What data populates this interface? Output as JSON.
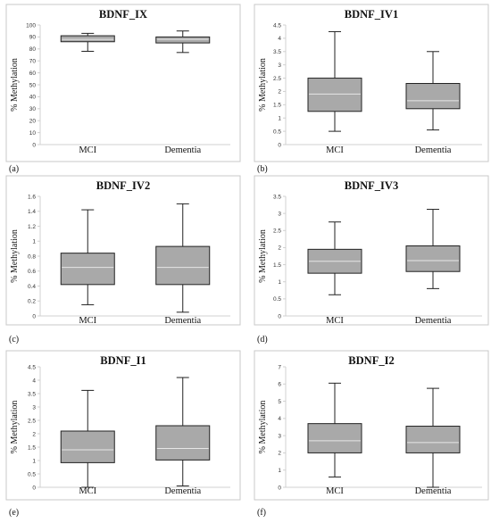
{
  "chart_data": [
    {
      "type": "boxplot",
      "panel_label": "(a)",
      "title": "BDNF_IX",
      "ylabel": "% Methylation",
      "ylim": [
        0,
        100
      ],
      "yticks": [
        "0",
        "10",
        "20",
        "30",
        "40",
        "50",
        "60",
        "70",
        "80",
        "90",
        "100"
      ],
      "categories": [
        "MCI",
        "Dementia"
      ],
      "boxes": [
        {
          "category": "MCI",
          "min": 78,
          "q1": 86,
          "median": 88,
          "q3": 91,
          "max": 93
        },
        {
          "category": "Dementia",
          "min": 77,
          "q1": 85,
          "median": 88,
          "q3": 90,
          "max": 95
        }
      ]
    },
    {
      "type": "boxplot",
      "panel_label": "(b)",
      "title": "BDNF_IV1",
      "ylabel": "% Methylation",
      "ylim": [
        0,
        4.5
      ],
      "yticks": [
        "0",
        "0.5",
        "1",
        "1.5",
        "2",
        "2.5",
        "3",
        "3.5",
        "4",
        "4.5"
      ],
      "categories": [
        "MCI",
        "Dementia"
      ],
      "boxes": [
        {
          "category": "MCI",
          "min": 0.5,
          "q1": 1.25,
          "median": 1.9,
          "q3": 2.5,
          "max": 4.25
        },
        {
          "category": "Dementia",
          "min": 0.55,
          "q1": 1.35,
          "median": 1.65,
          "q3": 2.3,
          "max": 3.5
        }
      ]
    },
    {
      "type": "boxplot",
      "panel_label": "(c)",
      "title": "BDNF_IV2",
      "ylabel": "% Methylation",
      "ylim": [
        0,
        1.6
      ],
      "yticks": [
        "0",
        "0.2",
        "0.4",
        "0.6",
        "0.8",
        "1",
        "1.2",
        "1.4",
        "1.6"
      ],
      "categories": [
        "MCI",
        "Dementia"
      ],
      "boxes": [
        {
          "category": "MCI",
          "min": 0.15,
          "q1": 0.42,
          "median": 0.65,
          "q3": 0.84,
          "max": 1.42
        },
        {
          "category": "Dementia",
          "min": 0.05,
          "q1": 0.42,
          "median": 0.65,
          "q3": 0.93,
          "max": 1.5
        }
      ]
    },
    {
      "type": "boxplot",
      "panel_label": "(d)",
      "title": "BDNF_IV3",
      "ylabel": "% Methylation",
      "ylim": [
        0,
        3.5
      ],
      "yticks": [
        "0",
        "0.5",
        "1",
        "1.5",
        "2",
        "2.5",
        "3",
        "3.5"
      ],
      "categories": [
        "MCI",
        "Dementia"
      ],
      "boxes": [
        {
          "category": "MCI",
          "min": 0.62,
          "q1": 1.25,
          "median": 1.6,
          "q3": 1.95,
          "max": 2.75
        },
        {
          "category": "Dementia",
          "min": 0.8,
          "q1": 1.3,
          "median": 1.62,
          "q3": 2.05,
          "max": 3.12
        }
      ]
    },
    {
      "type": "boxplot",
      "panel_label": "(e)",
      "title": "BDNF_I1",
      "ylabel": "% Methylation",
      "ylim": [
        0,
        4.5
      ],
      "yticks": [
        "0",
        "0.5",
        "1",
        "1.5",
        "2",
        "2.5",
        "3",
        "3.5",
        "4",
        "4.5"
      ],
      "categories": [
        "MCI",
        "Dementia"
      ],
      "boxes": [
        {
          "category": "MCI",
          "min": 0.0,
          "q1": 0.92,
          "median": 1.4,
          "q3": 2.1,
          "max": 3.62
        },
        {
          "category": "Dementia",
          "min": 0.05,
          "q1": 1.02,
          "median": 1.45,
          "q3": 2.3,
          "max": 4.1
        }
      ]
    },
    {
      "type": "boxplot",
      "panel_label": "(f)",
      "title": "BDNF_I2",
      "ylabel": "% Methylation",
      "ylim": [
        0,
        7
      ],
      "yticks": [
        "0",
        "1",
        "2",
        "3",
        "4",
        "5",
        "6",
        "7"
      ],
      "categories": [
        "MCI",
        "Dementia"
      ],
      "boxes": [
        {
          "category": "MCI",
          "min": 0.6,
          "q1": 2.0,
          "median": 2.7,
          "q3": 3.7,
          "max": 6.05
        },
        {
          "category": "Dementia",
          "min": 0.0,
          "q1": 2.0,
          "median": 2.6,
          "q3": 3.55,
          "max": 5.75
        }
      ]
    }
  ],
  "colors": {
    "box_fill": "#a9a9a9",
    "median_line": "#e6e6e6",
    "whisker": "#222222",
    "frame": "#c8c8c8"
  }
}
